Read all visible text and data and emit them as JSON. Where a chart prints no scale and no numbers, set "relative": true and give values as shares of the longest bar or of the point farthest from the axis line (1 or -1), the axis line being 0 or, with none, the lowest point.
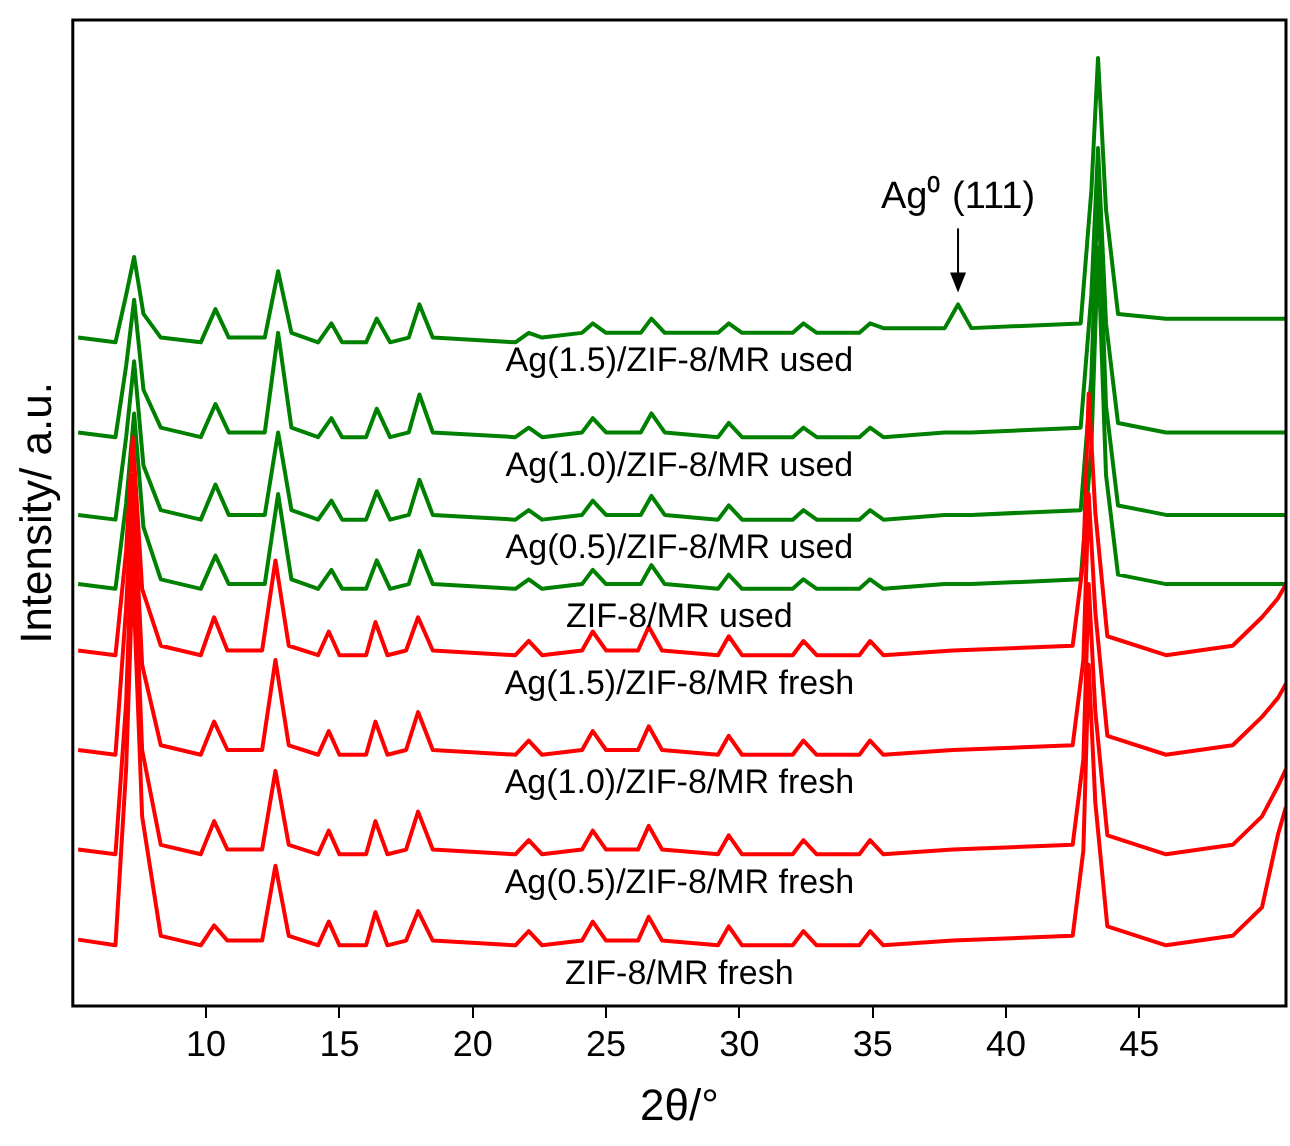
{
  "chart_data": {
    "type": "line",
    "relative": true,
    "xlabel": "2θ/°",
    "ylabel": "Intensity/ a.u.",
    "xlim": [
      5,
      50.5
    ],
    "xticks": [
      10,
      15,
      20,
      25,
      30,
      35,
      40,
      45
    ],
    "tick_labels": "x",
    "grid": false,
    "legend": false,
    "marker": "none",
    "line_style": "solid",
    "annotations": [
      {
        "text": "Ag⁰ (111)",
        "x": 38.2,
        "y": 0.74
      }
    ],
    "series": [
      {
        "name": "ZIF-8/MR fresh",
        "color": "#ff0000",
        "x": [
          5.2,
          6.6,
          7.0,
          7.25,
          7.6,
          8.3,
          9.8,
          10.3,
          10.8,
          12.1,
          12.6,
          13.1,
          14.2,
          14.6,
          15.0,
          16.0,
          16.35,
          16.8,
          17.5,
          17.95,
          18.5,
          21.6,
          22.1,
          22.6,
          24.1,
          24.5,
          25.0,
          26.2,
          26.6,
          27.1,
          29.2,
          29.6,
          30.1,
          32.0,
          32.4,
          32.9,
          34.5,
          34.9,
          35.4,
          38.0,
          42.5,
          42.9,
          43.1,
          43.35,
          43.8,
          46.0,
          48.5,
          49.6,
          50.2,
          50.5
        ],
        "values": [
          0.07,
          0.064,
          0.25,
          0.46,
          0.2,
          0.074,
          0.064,
          0.085,
          0.069,
          0.069,
          0.148,
          0.074,
          0.064,
          0.089,
          0.064,
          0.064,
          0.099,
          0.064,
          0.069,
          0.1,
          0.069,
          0.064,
          0.079,
          0.064,
          0.069,
          0.089,
          0.069,
          0.069,
          0.094,
          0.069,
          0.064,
          0.084,
          0.064,
          0.064,
          0.079,
          0.064,
          0.064,
          0.079,
          0.064,
          0.069,
          0.074,
          0.164,
          0.36,
          0.214,
          0.084,
          0.064,
          0.074,
          0.104,
          0.181,
          0.21
        ]
      },
      {
        "name": "Ag(0.5)/ZIF-8/MR fresh",
        "color": "#ff0000",
        "x": [
          5.2,
          6.6,
          7.0,
          7.25,
          7.6,
          8.3,
          9.8,
          10.3,
          10.8,
          12.1,
          12.6,
          13.1,
          14.2,
          14.6,
          15.0,
          16.0,
          16.35,
          16.8,
          17.5,
          17.95,
          18.5,
          21.6,
          22.1,
          22.6,
          24.1,
          24.5,
          25.0,
          26.2,
          26.6,
          27.1,
          29.2,
          29.6,
          30.1,
          32.0,
          32.4,
          32.9,
          34.5,
          34.9,
          35.4,
          38.0,
          42.5,
          42.9,
          43.1,
          43.35,
          43.8,
          46.0,
          48.5,
          49.6,
          50.2,
          50.5
        ],
        "values": [
          0.165,
          0.16,
          0.32,
          0.52,
          0.27,
          0.17,
          0.16,
          0.195,
          0.165,
          0.165,
          0.248,
          0.17,
          0.16,
          0.185,
          0.16,
          0.16,
          0.195,
          0.16,
          0.165,
          0.205,
          0.165,
          0.16,
          0.175,
          0.16,
          0.165,
          0.185,
          0.165,
          0.165,
          0.19,
          0.165,
          0.16,
          0.18,
          0.16,
          0.16,
          0.175,
          0.16,
          0.16,
          0.175,
          0.16,
          0.165,
          0.17,
          0.26,
          0.445,
          0.31,
          0.18,
          0.16,
          0.17,
          0.2,
          0.232,
          0.25
        ]
      },
      {
        "name": "Ag(1.0)/ZIF-8/MR fresh",
        "color": "#ff0000",
        "x": [
          5.2,
          6.6,
          7.0,
          7.25,
          7.6,
          8.3,
          9.8,
          10.3,
          10.8,
          12.1,
          12.6,
          13.1,
          14.2,
          14.6,
          15.0,
          16.0,
          16.35,
          16.8,
          17.5,
          17.95,
          18.5,
          21.6,
          22.1,
          22.6,
          24.1,
          24.5,
          25.0,
          26.2,
          26.6,
          27.1,
          29.2,
          29.6,
          30.1,
          32.0,
          32.4,
          32.9,
          34.5,
          34.9,
          35.4,
          38.0,
          42.5,
          42.9,
          43.1,
          43.35,
          43.8,
          46.0,
          48.5,
          49.6,
          50.2,
          50.5
        ],
        "values": [
          0.27,
          0.265,
          0.42,
          0.56,
          0.36,
          0.275,
          0.265,
          0.3,
          0.27,
          0.27,
          0.365,
          0.275,
          0.265,
          0.29,
          0.265,
          0.265,
          0.3,
          0.265,
          0.27,
          0.31,
          0.27,
          0.265,
          0.28,
          0.265,
          0.27,
          0.29,
          0.27,
          0.27,
          0.295,
          0.27,
          0.265,
          0.285,
          0.265,
          0.265,
          0.28,
          0.265,
          0.265,
          0.28,
          0.265,
          0.27,
          0.275,
          0.365,
          0.54,
          0.415,
          0.285,
          0.265,
          0.275,
          0.305,
          0.325,
          0.34
        ]
      },
      {
        "name": "Ag(1.5)/ZIF-8/MR fresh",
        "color": "#ff0000",
        "x": [
          5.2,
          6.6,
          7.0,
          7.25,
          7.6,
          8.3,
          9.8,
          10.3,
          10.8,
          12.1,
          12.6,
          13.1,
          14.2,
          14.6,
          15.0,
          16.0,
          16.35,
          16.8,
          17.5,
          17.95,
          18.5,
          21.6,
          22.1,
          22.6,
          24.1,
          24.5,
          25.0,
          26.2,
          26.6,
          27.1,
          29.2,
          29.6,
          30.1,
          32.0,
          32.4,
          32.9,
          34.5,
          34.9,
          35.4,
          38.0,
          42.5,
          42.9,
          43.1,
          43.35,
          43.8,
          46.0,
          48.5,
          49.6,
          50.2,
          50.5
        ],
        "values": [
          0.375,
          0.37,
          0.48,
          0.6,
          0.44,
          0.38,
          0.37,
          0.41,
          0.375,
          0.375,
          0.47,
          0.38,
          0.37,
          0.395,
          0.37,
          0.37,
          0.405,
          0.37,
          0.375,
          0.41,
          0.375,
          0.37,
          0.385,
          0.37,
          0.375,
          0.395,
          0.375,
          0.375,
          0.4,
          0.375,
          0.37,
          0.39,
          0.37,
          0.37,
          0.385,
          0.37,
          0.37,
          0.385,
          0.37,
          0.375,
          0.38,
          0.47,
          0.646,
          0.52,
          0.39,
          0.37,
          0.38,
          0.41,
          0.43,
          0.445
        ]
      },
      {
        "name": "ZIF-8/MR used",
        "color": "#008000",
        "x": [
          5.2,
          6.6,
          7.0,
          7.3,
          7.65,
          8.3,
          9.8,
          10.35,
          10.85,
          12.2,
          12.7,
          13.2,
          14.2,
          14.7,
          15.1,
          16.0,
          16.4,
          16.9,
          17.6,
          18.0,
          18.5,
          21.6,
          22.1,
          22.6,
          24.1,
          24.5,
          25.0,
          26.3,
          26.7,
          27.2,
          29.2,
          29.6,
          30.1,
          32.0,
          32.4,
          32.9,
          34.5,
          34.9,
          35.4,
          37.7,
          38.2,
          38.7,
          42.8,
          43.2,
          43.45,
          43.75,
          44.2,
          46.0,
          48.5,
          50.5
        ],
        "values": [
          0.445,
          0.44,
          0.53,
          0.625,
          0.505,
          0.45,
          0.44,
          0.475,
          0.445,
          0.445,
          0.54,
          0.45,
          0.44,
          0.46,
          0.44,
          0.44,
          0.47,
          0.44,
          0.445,
          0.48,
          0.445,
          0.44,
          0.45,
          0.44,
          0.445,
          0.46,
          0.445,
          0.445,
          0.465,
          0.445,
          0.44,
          0.455,
          0.44,
          0.44,
          0.45,
          0.44,
          0.44,
          0.45,
          0.44,
          0.445,
          0.445,
          0.445,
          0.45,
          0.59,
          0.8,
          0.56,
          0.455,
          0.445,
          0.445,
          0.445
        ]
      },
      {
        "name": "Ag(0.5)/ZIF-8/MR used",
        "color": "#008000",
        "x": [
          5.2,
          6.6,
          7.0,
          7.3,
          7.65,
          8.3,
          9.8,
          10.35,
          10.85,
          12.2,
          12.7,
          13.2,
          14.2,
          14.7,
          15.1,
          16.0,
          16.4,
          16.9,
          17.6,
          18.0,
          18.5,
          21.6,
          22.1,
          22.6,
          24.1,
          24.5,
          25.0,
          26.3,
          26.7,
          27.2,
          29.2,
          29.6,
          30.1,
          32.0,
          32.4,
          32.9,
          34.5,
          34.9,
          35.4,
          37.7,
          38.2,
          38.7,
          42.8,
          43.2,
          43.45,
          43.75,
          44.2,
          46.0,
          48.5,
          50.5
        ],
        "values": [
          0.518,
          0.513,
          0.6,
          0.68,
          0.57,
          0.523,
          0.513,
          0.55,
          0.518,
          0.518,
          0.605,
          0.523,
          0.513,
          0.533,
          0.513,
          0.513,
          0.543,
          0.513,
          0.518,
          0.555,
          0.518,
          0.513,
          0.523,
          0.513,
          0.518,
          0.533,
          0.518,
          0.518,
          0.538,
          0.518,
          0.513,
          0.528,
          0.513,
          0.513,
          0.523,
          0.513,
          0.513,
          0.523,
          0.513,
          0.518,
          0.518,
          0.518,
          0.523,
          0.663,
          0.87,
          0.633,
          0.528,
          0.518,
          0.518,
          0.518
        ]
      },
      {
        "name": "Ag(1.0)/ZIF-8/MR used",
        "color": "#008000",
        "x": [
          5.2,
          6.6,
          7.0,
          7.3,
          7.65,
          8.3,
          9.8,
          10.35,
          10.85,
          12.2,
          12.7,
          13.2,
          14.2,
          14.7,
          15.1,
          16.0,
          16.4,
          16.9,
          17.6,
          18.0,
          18.5,
          21.6,
          22.1,
          22.6,
          24.1,
          24.5,
          25.0,
          26.3,
          26.7,
          27.2,
          29.2,
          29.6,
          30.1,
          32.0,
          32.4,
          32.9,
          34.5,
          34.9,
          35.4,
          37.7,
          38.2,
          38.7,
          42.8,
          43.2,
          43.45,
          43.75,
          44.2,
          46.0,
          48.5,
          50.5
        ],
        "values": [
          0.605,
          0.6,
          0.675,
          0.745,
          0.65,
          0.61,
          0.6,
          0.635,
          0.605,
          0.605,
          0.71,
          0.61,
          0.6,
          0.62,
          0.6,
          0.6,
          0.63,
          0.6,
          0.605,
          0.645,
          0.605,
          0.6,
          0.61,
          0.6,
          0.605,
          0.62,
          0.605,
          0.605,
          0.625,
          0.605,
          0.6,
          0.615,
          0.6,
          0.6,
          0.61,
          0.6,
          0.6,
          0.61,
          0.6,
          0.605,
          0.605,
          0.605,
          0.61,
          0.75,
          0.905,
          0.72,
          0.615,
          0.605,
          0.605,
          0.605
        ]
      },
      {
        "name": "Ag(1.5)/ZIF-8/MR used",
        "color": "#008000",
        "x": [
          5.2,
          6.6,
          7.0,
          7.3,
          7.65,
          8.3,
          9.8,
          10.35,
          10.85,
          12.2,
          12.7,
          13.2,
          14.2,
          14.7,
          15.1,
          16.0,
          16.4,
          16.9,
          17.6,
          18.0,
          18.5,
          21.6,
          22.1,
          22.6,
          24.1,
          24.5,
          25.0,
          26.3,
          26.7,
          27.2,
          29.2,
          29.6,
          30.1,
          32.0,
          32.4,
          32.9,
          34.5,
          34.9,
          35.4,
          37.7,
          38.2,
          38.7,
          42.8,
          43.2,
          43.45,
          43.75,
          44.2,
          46.0,
          48.5,
          50.5
        ],
        "values": [
          0.705,
          0.7,
          0.75,
          0.79,
          0.73,
          0.705,
          0.7,
          0.735,
          0.705,
          0.705,
          0.775,
          0.71,
          0.7,
          0.72,
          0.7,
          0.7,
          0.725,
          0.7,
          0.705,
          0.74,
          0.705,
          0.7,
          0.71,
          0.705,
          0.71,
          0.72,
          0.71,
          0.71,
          0.725,
          0.71,
          0.71,
          0.72,
          0.71,
          0.71,
          0.72,
          0.71,
          0.71,
          0.72,
          0.715,
          0.715,
          0.74,
          0.715,
          0.72,
          0.86,
          1.0,
          0.84,
          0.73,
          0.725,
          0.725,
          0.725
        ]
      }
    ]
  }
}
